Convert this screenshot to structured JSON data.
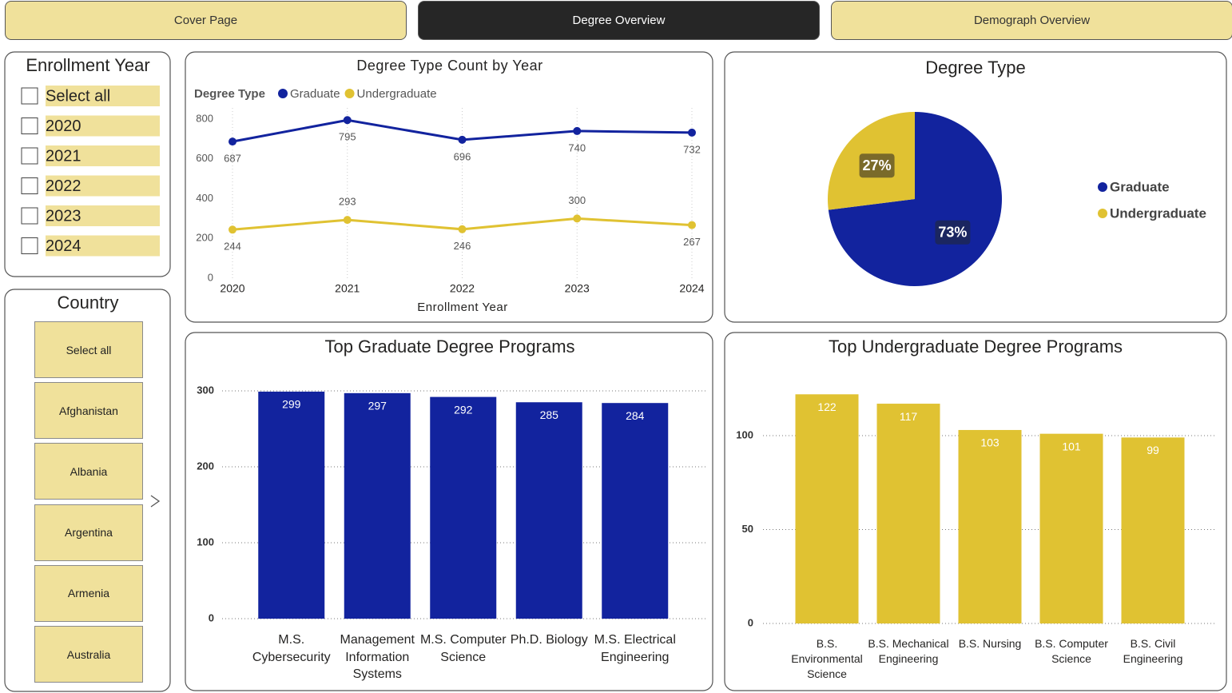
{
  "nav": {
    "tabs": [
      "Cover Page",
      "Degree Overview",
      "Demograph Overview"
    ],
    "active": 1
  },
  "year_slicer": {
    "title": "Enrollment Year",
    "options": [
      "Select all",
      "2020",
      "2021",
      "2022",
      "2023",
      "2024"
    ]
  },
  "country_slicer": {
    "title": "Country",
    "options": [
      "Select all",
      "Afghanistan",
      "Albania",
      "Argentina",
      "Armenia",
      "Australia"
    ]
  },
  "chart_data": [
    {
      "type": "line",
      "title": "Degree Type Count by Year",
      "legend_title": "Degree Type",
      "x_label": "Enrollment Year",
      "categories": [
        "2020",
        "2021",
        "2022",
        "2023",
        "2024"
      ],
      "series": [
        {
          "name": "Graduate",
          "color": "#12239e",
          "values": [
            687,
            795,
            696,
            740,
            732
          ]
        },
        {
          "name": "Undergraduate",
          "color": "#e0c232",
          "values": [
            244,
            293,
            246,
            300,
            267
          ]
        }
      ],
      "ylim": [
        0,
        800
      ],
      "yticks": [
        0,
        200,
        400,
        600,
        800
      ],
      "grid": false
    },
    {
      "type": "pie",
      "title": "Degree Type",
      "categories": [
        "Graduate",
        "Undergraduate"
      ],
      "values": [
        73,
        27
      ],
      "value_labels": [
        "73%",
        "27%"
      ],
      "colors": [
        "#12239e",
        "#e0c232"
      ],
      "legend": "right"
    },
    {
      "type": "bar",
      "title": "Top Graduate Degree Programs",
      "categories": [
        "M.S. Cybersecurity",
        "Management Information Systems",
        "M.S. Computer Science",
        "Ph.D. Biology",
        "M.S. Electrical Engineering"
      ],
      "values": [
        299,
        297,
        292,
        285,
        284
      ],
      "color": "#12239e",
      "ylim": [
        0,
        300
      ],
      "yticks": [
        0,
        100,
        200,
        300
      ],
      "grid": true
    },
    {
      "type": "bar",
      "title": "Top Undergraduate Degree Programs",
      "categories": [
        "B.S. Environmental Science",
        "B.S. Mechanical Engineering",
        "B.S. Nursing",
        "B.S. Computer Science",
        "B.S. Civil Engineering"
      ],
      "values": [
        122,
        117,
        103,
        101,
        99
      ],
      "color": "#e0c232",
      "ylim": [
        0,
        130
      ],
      "yticks": [
        0,
        50,
        100
      ],
      "grid": true
    }
  ]
}
